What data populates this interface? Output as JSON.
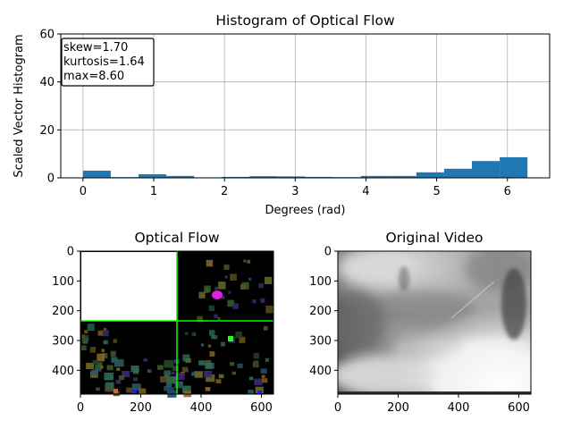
{
  "chart_data": [
    {
      "type": "bar",
      "title": "Histogram of Optical Flow",
      "xlabel": "Degrees (rad)",
      "ylabel": "Scaled Vector Histogram",
      "xlim": [
        -0.314,
        6.597
      ],
      "ylim": [
        0,
        60
      ],
      "xticks": [
        0,
        1,
        2,
        3,
        4,
        5,
        6
      ],
      "yticks": [
        0,
        20,
        40,
        60
      ],
      "grid": true,
      "color": "#1f77b4",
      "bin_edges": [
        0,
        0.3927,
        0.7854,
        1.1781,
        1.5708,
        1.9635,
        2.3562,
        2.7489,
        3.1416,
        3.5343,
        3.927,
        4.3197,
        4.7124,
        5.1051,
        5.4978,
        5.8905,
        6.2832
      ],
      "values": [
        3.0,
        0.3,
        1.5,
        0.8,
        0.2,
        0.4,
        0.7,
        0.6,
        0.4,
        0.3,
        0.8,
        0.8,
        2.3,
        3.8,
        7.0,
        8.6
      ],
      "annotation": {
        "lines": [
          "skew=1.70",
          "kurtosis=1.64",
          "max=8.60"
        ],
        "placement": "top-left"
      }
    },
    {
      "type": "image",
      "title": "Optical Flow",
      "xticks": [
        0,
        200,
        400,
        600
      ],
      "yticks": [
        0,
        100,
        200,
        300,
        400
      ],
      "xlim": [
        0,
        640
      ],
      "ylim": [
        480,
        0
      ],
      "crosshair": {
        "x": 320,
        "y": 240,
        "color": "#00ff00"
      },
      "quadrant_fill": "#ffffff",
      "background": "#000000"
    },
    {
      "type": "image",
      "title": "Original Video",
      "xticks": [
        0,
        200,
        400,
        600
      ],
      "yticks": [
        0,
        100,
        200,
        300,
        400
      ],
      "xlim": [
        0,
        640
      ],
      "ylim": [
        480,
        0
      ],
      "colormap": "grayscale"
    }
  ]
}
